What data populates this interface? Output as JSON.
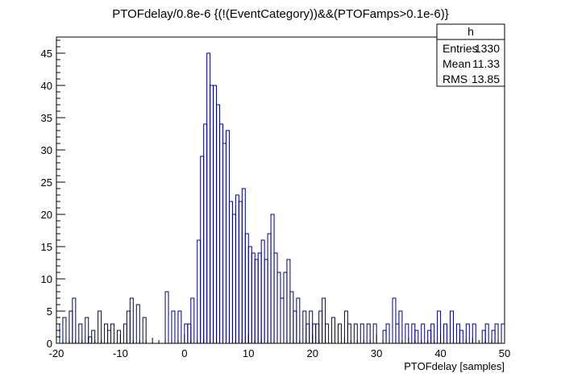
{
  "chart_data": {
    "type": "bar",
    "subtype": "histogram",
    "title": "PTOFdelay/0.8e-6 {(!(EventCategory))&&(PTOFamps>0.1e-6)}",
    "xlabel": "PTOFdelay [samples]",
    "ylabel": "",
    "xlim": [
      -20,
      50
    ],
    "ylim": [
      0,
      47.5
    ],
    "bin_width": 0.5,
    "x_ticks": [
      -20,
      -10,
      0,
      10,
      20,
      30,
      40,
      50
    ],
    "y_ticks": [
      0,
      5,
      10,
      15,
      20,
      25,
      30,
      35,
      40,
      45
    ],
    "grid": false,
    "line_color": "#000080",
    "values": [
      3,
      0,
      4,
      0,
      5,
      7,
      0,
      3,
      0,
      4,
      1,
      2,
      0,
      5,
      0,
      3,
      2,
      3,
      0,
      2,
      0,
      3,
      5,
      7,
      0,
      6,
      0,
      4,
      0,
      0,
      0,
      0,
      0,
      0,
      8,
      0,
      5,
      0,
      5,
      0,
      3,
      3,
      7,
      0,
      16,
      29,
      34,
      45,
      40,
      40,
      37,
      34,
      31,
      33,
      22,
      20,
      23,
      22,
      24,
      17,
      15,
      14,
      13,
      14,
      16,
      13,
      17,
      20,
      14,
      11,
      7,
      11,
      13,
      8,
      5,
      7,
      0,
      5,
      3,
      5,
      3,
      3,
      5,
      7,
      3,
      0,
      4,
      0,
      3,
      0,
      5,
      3,
      0,
      3,
      0,
      3,
      0,
      3,
      0,
      3,
      0,
      0,
      2,
      3,
      0,
      7,
      3,
      5,
      0,
      3,
      0,
      3,
      2,
      0,
      3,
      0,
      2,
      3,
      0,
      5,
      0,
      3,
      0,
      5,
      0,
      3,
      2,
      0,
      3,
      0,
      3,
      0,
      0,
      2,
      3,
      0,
      2,
      3,
      0,
      3
    ]
  },
  "stats_box": {
    "title": "h",
    "rows": [
      {
        "label": "Entries",
        "value": "1330"
      },
      {
        "label": "Mean",
        "value": "11.33"
      },
      {
        "label": "RMS",
        "value": "13.85"
      }
    ]
  }
}
